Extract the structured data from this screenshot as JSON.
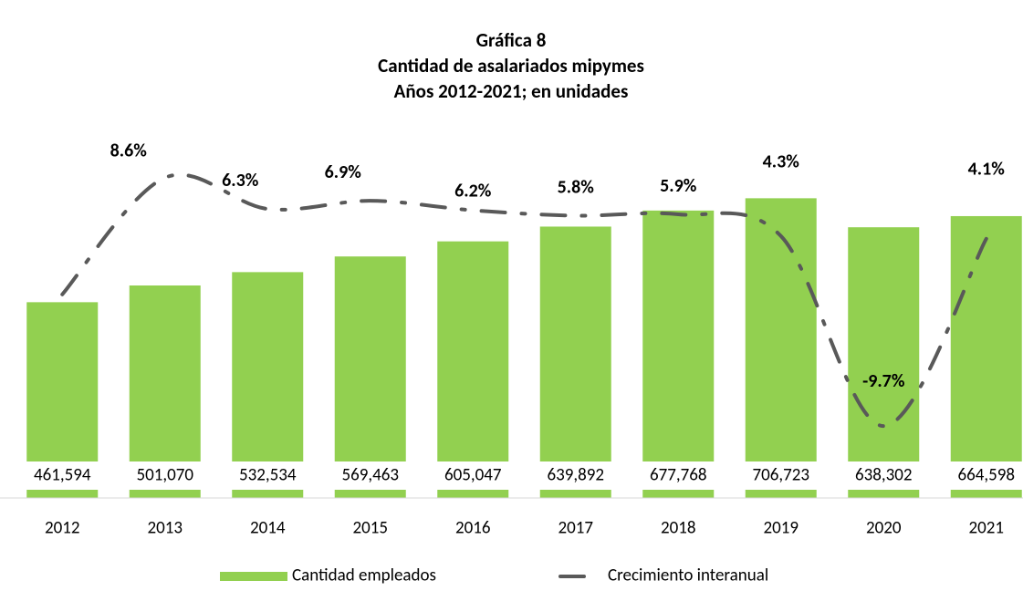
{
  "chart_data": {
    "type": "bar",
    "title": [
      "Gráfica 8",
      "Cantidad de asalariados mipymes",
      "Años 2012-2021; en unidades"
    ],
    "categories": [
      "2012",
      "2013",
      "2014",
      "2015",
      "2016",
      "2017",
      "2018",
      "2019",
      "2020",
      "2021"
    ],
    "series": [
      {
        "name": "Cantidad empleados",
        "type": "bar",
        "color": "#92d050",
        "values": [
          461594,
          501070,
          532534,
          569463,
          605047,
          639892,
          677768,
          706723,
          638302,
          664598
        ],
        "value_labels": [
          "461,594",
          "501,070",
          "532,534",
          "569,463",
          "605,047",
          "639,892",
          "677,768",
          "706,723",
          "638,302",
          "664,598"
        ]
      },
      {
        "name": "Crecimiento interanual",
        "type": "line",
        "axis": "y2",
        "color": "#595959",
        "values": [
          0,
          8.6,
          6.3,
          6.9,
          6.2,
          5.8,
          5.9,
          4.3,
          -9.7,
          4.1
        ],
        "value_labels": [
          null,
          "8.6%",
          "6.3%",
          "6.9%",
          "6.2%",
          "5.8%",
          "5.9%",
          "4.3%",
          "-9.7%",
          "4.1%"
        ]
      }
    ],
    "ylim": [
      0,
      800000
    ],
    "y2lim": [
      -15,
      10
    ],
    "legend": "bottom"
  }
}
